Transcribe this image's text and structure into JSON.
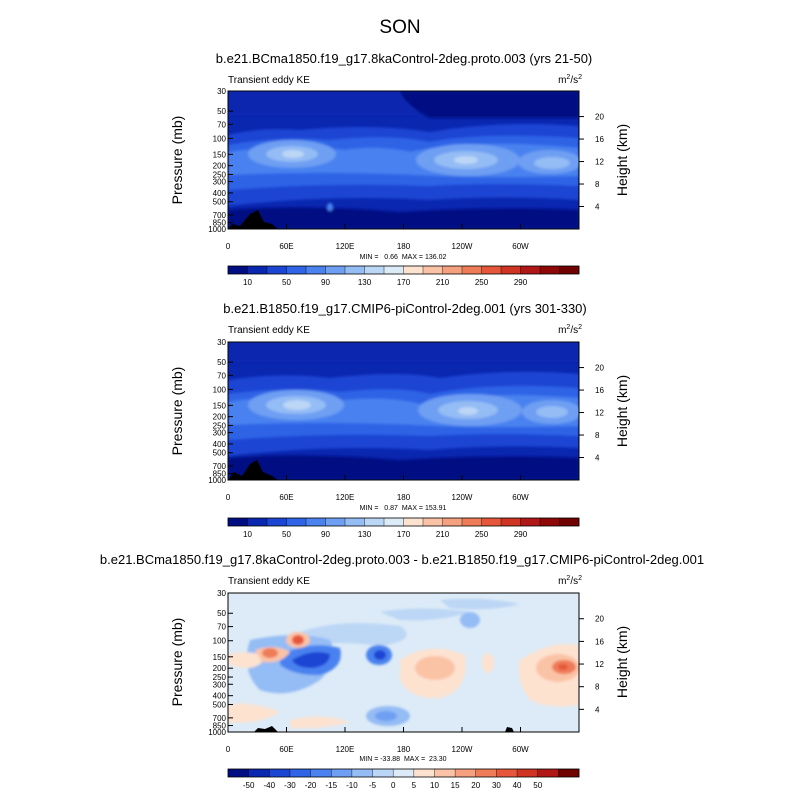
{
  "main_title": "SON",
  "chart_data": [
    {
      "type": "heatmap",
      "title": "b.e21.BCma1850.f19_g17.8kaControl-2deg.proto.003 (yrs 21-50)",
      "left_label": "Transient eddy KE",
      "units": "m²/s²",
      "units_base": "m",
      "units_sup1": "2",
      "units_mid": "/s",
      "units_sup2": "2",
      "ylabel": "Pressure (mb)",
      "ylabel_right": "Height (km)",
      "x_ticks": [
        "0",
        "60E",
        "120E",
        "180",
        "120W",
        "60W"
      ],
      "y_ticks": [
        "30",
        "50",
        "70",
        "100",
        "150",
        "200",
        "250",
        "300",
        "400",
        "500",
        "700",
        "850",
        "1000"
      ],
      "height_ticks": [
        "20",
        "16",
        "12",
        "8",
        "4"
      ],
      "stats": "MIN =   0.66  MAX = 136.02",
      "colorbar_labels": [
        "10",
        "50",
        "90",
        "130",
        "170",
        "210",
        "250",
        "290"
      ],
      "colorbar_colors": [
        "#000d83",
        "#0a27b0",
        "#1b45d3",
        "#2f64e6",
        "#4a82f0",
        "#6e9ff3",
        "#94bcf5",
        "#bcd6f6",
        "#dcebf7",
        "#fde2d0",
        "#fbc3a6",
        "#f5a07e",
        "#ef7c58",
        "#e6563a",
        "#cf3322",
        "#b01717",
        "#8e0808",
        "#700101"
      ],
      "min": 0.66,
      "max": 136.02
    },
    {
      "type": "heatmap",
      "title": "b.e21.B1850.f19_g17.CMIP6-piControl-2deg.001 (yrs 301-330)",
      "left_label": "Transient eddy KE",
      "units": "m²/s²",
      "units_base": "m",
      "units_sup1": "2",
      "units_mid": "/s",
      "units_sup2": "2",
      "ylabel": "Pressure (mb)",
      "ylabel_right": "Height (km)",
      "x_ticks": [
        "0",
        "60E",
        "120E",
        "180",
        "120W",
        "60W"
      ],
      "y_ticks": [
        "30",
        "50",
        "70",
        "100",
        "150",
        "200",
        "250",
        "300",
        "400",
        "500",
        "700",
        "850",
        "1000"
      ],
      "height_ticks": [
        "20",
        "16",
        "12",
        "8",
        "4"
      ],
      "stats": "MIN =   0.87  MAX = 153.91",
      "colorbar_labels": [
        "10",
        "50",
        "90",
        "130",
        "170",
        "210",
        "250",
        "290"
      ],
      "colorbar_colors": [
        "#000d83",
        "#0a27b0",
        "#1b45d3",
        "#2f64e6",
        "#4a82f0",
        "#6e9ff3",
        "#94bcf5",
        "#bcd6f6",
        "#dcebf7",
        "#fde2d0",
        "#fbc3a6",
        "#f5a07e",
        "#ef7c58",
        "#e6563a",
        "#cf3322",
        "#b01717",
        "#8e0808",
        "#700101"
      ],
      "min": 0.87,
      "max": 153.91
    },
    {
      "type": "heatmap",
      "title": "b.e21.BCma1850.f19_g17.8kaControl-2deg.proto.003 - b.e21.B1850.f19_g17.CMIP6-piControl-2deg.001",
      "left_label": "Transient eddy KE",
      "units": "m²/s²",
      "units_base": "m",
      "units_sup1": "2",
      "units_mid": "/s",
      "units_sup2": "2",
      "ylabel": "Pressure (mb)",
      "ylabel_right": "Height (km)",
      "x_ticks": [
        "0",
        "60E",
        "120E",
        "180",
        "120W",
        "60W"
      ],
      "y_ticks": [
        "30",
        "50",
        "70",
        "100",
        "150",
        "200",
        "250",
        "300",
        "400",
        "500",
        "700",
        "850",
        "1000"
      ],
      "height_ticks": [
        "20",
        "16",
        "12",
        "8",
        "4"
      ],
      "stats": "MIN = -33.88  MAX =  23.30",
      "colorbar_labels": [
        "-50",
        "-40",
        "-30",
        "-20",
        "-15",
        "-10",
        "-5",
        "0",
        "5",
        "10",
        "15",
        "20",
        "30",
        "40",
        "50"
      ],
      "colorbar_colors": [
        "#000d83",
        "#0a27b0",
        "#1b45d3",
        "#2f64e6",
        "#4a82f0",
        "#6e9ff3",
        "#94bcf5",
        "#bcd6f6",
        "#dcebf7",
        "#fde2d0",
        "#fbc3a6",
        "#f5a07e",
        "#ef7c58",
        "#e6563a",
        "#cf3322",
        "#b01717",
        "#700101"
      ],
      "min": -33.88,
      "max": 23.3
    }
  ]
}
